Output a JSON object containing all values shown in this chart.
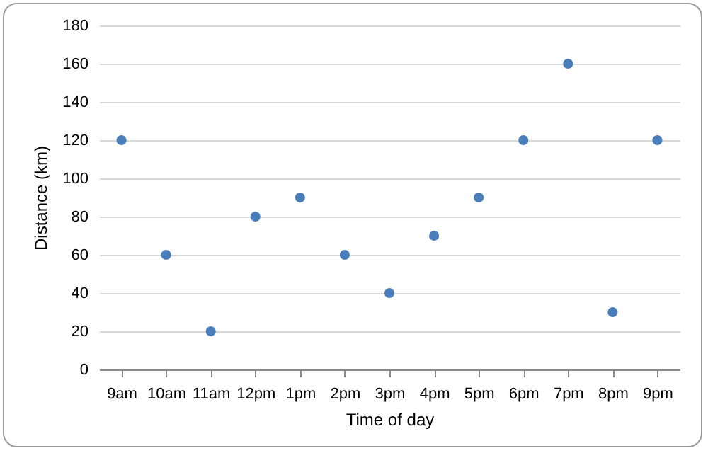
{
  "chart_data": {
    "type": "scatter",
    "xlabel": "Time of day",
    "ylabel": "Distance (km)",
    "categories": [
      "9am",
      "10am",
      "11am",
      "12pm",
      "1pm",
      "2pm",
      "3pm",
      "4pm",
      "5pm",
      "6pm",
      "7pm",
      "8pm",
      "9pm"
    ],
    "series": [
      {
        "color": "#4a7ebb",
        "values": [
          120,
          60,
          20,
          80,
          90,
          60,
          40,
          70,
          90,
          120,
          160,
          30,
          120
        ]
      }
    ],
    "ylim": [
      0,
      180
    ],
    "yticks": [
      0,
      20,
      40,
      60,
      80,
      100,
      120,
      140,
      160,
      180
    ],
    "grid": "y",
    "marker": "circle",
    "legend": false
  }
}
